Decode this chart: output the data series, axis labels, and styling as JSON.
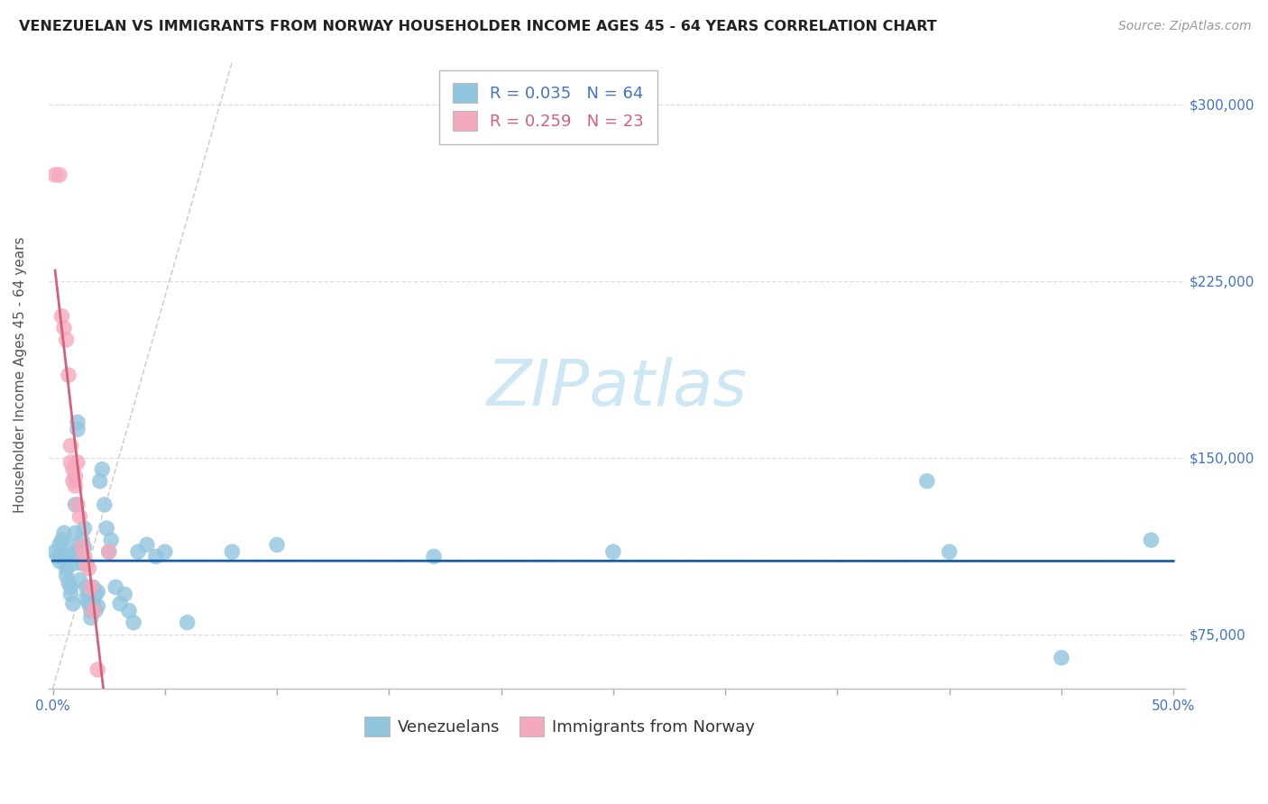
{
  "title": "VENEZUELAN VS IMMIGRANTS FROM NORWAY HOUSEHOLDER INCOME AGES 45 - 64 YEARS CORRELATION CHART",
  "source": "Source: ZipAtlas.com",
  "ylabel": "Householder Income Ages 45 - 64 years",
  "xlim": [
    -0.002,
    0.505
  ],
  "ylim": [
    52000,
    318000
  ],
  "yticks": [
    75000,
    150000,
    225000,
    300000
  ],
  "ytick_labels": [
    "$75,000",
    "$150,000",
    "$225,000",
    "$300,000"
  ],
  "legend_blue_r": "R = 0.035",
  "legend_blue_n": "N = 64",
  "legend_pink_r": "R = 0.259",
  "legend_pink_n": "N = 23",
  "blue_color": "#92c5de",
  "pink_color": "#f4a9bc",
  "blue_line_color": "#1a5ea8",
  "pink_line_color": "#d4607a",
  "ref_line_color": "#cccccc",
  "watermark_text": "ZIPatlas",
  "blue_points": [
    [
      0.001,
      110000
    ],
    [
      0.002,
      108000
    ],
    [
      0.003,
      106000
    ],
    [
      0.003,
      113000
    ],
    [
      0.004,
      109000
    ],
    [
      0.004,
      115000
    ],
    [
      0.005,
      118000
    ],
    [
      0.005,
      107000
    ],
    [
      0.006,
      103000
    ],
    [
      0.006,
      100000
    ],
    [
      0.007,
      97000
    ],
    [
      0.007,
      113000
    ],
    [
      0.007,
      108000
    ],
    [
      0.008,
      95000
    ],
    [
      0.008,
      92000
    ],
    [
      0.009,
      88000
    ],
    [
      0.009,
      105000
    ],
    [
      0.01,
      118000
    ],
    [
      0.01,
      130000
    ],
    [
      0.01,
      110000
    ],
    [
      0.011,
      162000
    ],
    [
      0.011,
      165000
    ],
    [
      0.012,
      110000
    ],
    [
      0.012,
      98000
    ],
    [
      0.013,
      115000
    ],
    [
      0.013,
      105000
    ],
    [
      0.014,
      112000
    ],
    [
      0.014,
      120000
    ],
    [
      0.015,
      95000
    ],
    [
      0.015,
      90000
    ],
    [
      0.016,
      88000
    ],
    [
      0.016,
      92000
    ],
    [
      0.017,
      85000
    ],
    [
      0.017,
      82000
    ],
    [
      0.018,
      95000
    ],
    [
      0.018,
      88000
    ],
    [
      0.019,
      92000
    ],
    [
      0.019,
      85000
    ],
    [
      0.02,
      87000
    ],
    [
      0.02,
      93000
    ],
    [
      0.021,
      140000
    ],
    [
      0.022,
      145000
    ],
    [
      0.023,
      130000
    ],
    [
      0.024,
      120000
    ],
    [
      0.025,
      110000
    ],
    [
      0.026,
      115000
    ],
    [
      0.028,
      95000
    ],
    [
      0.03,
      88000
    ],
    [
      0.032,
      92000
    ],
    [
      0.034,
      85000
    ],
    [
      0.036,
      80000
    ],
    [
      0.038,
      110000
    ],
    [
      0.042,
      113000
    ],
    [
      0.046,
      108000
    ],
    [
      0.05,
      110000
    ],
    [
      0.06,
      80000
    ],
    [
      0.08,
      110000
    ],
    [
      0.1,
      113000
    ],
    [
      0.17,
      108000
    ],
    [
      0.25,
      110000
    ],
    [
      0.39,
      140000
    ],
    [
      0.4,
      110000
    ],
    [
      0.45,
      65000
    ],
    [
      0.49,
      115000
    ]
  ],
  "pink_points": [
    [
      0.001,
      270000
    ],
    [
      0.003,
      270000
    ],
    [
      0.004,
      210000
    ],
    [
      0.005,
      205000
    ],
    [
      0.006,
      200000
    ],
    [
      0.007,
      185000
    ],
    [
      0.008,
      155000
    ],
    [
      0.008,
      148000
    ],
    [
      0.009,
      145000
    ],
    [
      0.009,
      140000
    ],
    [
      0.01,
      138000
    ],
    [
      0.01,
      142000
    ],
    [
      0.011,
      148000
    ],
    [
      0.011,
      130000
    ],
    [
      0.012,
      125000
    ],
    [
      0.013,
      112000
    ],
    [
      0.014,
      108000
    ],
    [
      0.015,
      105000
    ],
    [
      0.016,
      103000
    ],
    [
      0.017,
      95000
    ],
    [
      0.018,
      85000
    ],
    [
      0.02,
      60000
    ],
    [
      0.025,
      110000
    ]
  ],
  "title_fontsize": 11.5,
  "source_fontsize": 10,
  "axis_label_fontsize": 11,
  "tick_fontsize": 11,
  "legend_fontsize": 13,
  "watermark_fontsize": 52,
  "watermark_color": "#cde8f4",
  "background_color": "#ffffff",
  "grid_color": "#dddddd",
  "text_color": "#4472c4",
  "title_color": "#222222"
}
